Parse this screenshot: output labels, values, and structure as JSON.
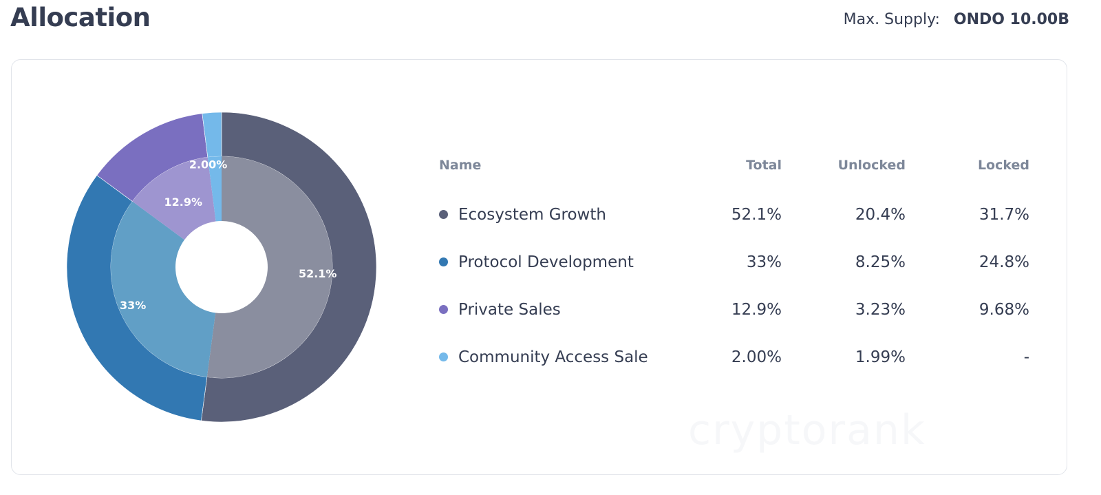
{
  "header": {
    "title": "Allocation",
    "supply_label": "Max. Supply:",
    "supply_value": "ONDO 10.00B"
  },
  "watermark": "cryptorank",
  "table": {
    "headers": {
      "name": "Name",
      "total": "Total",
      "unlocked": "Unlocked",
      "locked": "Locked"
    },
    "rows": [
      {
        "name": "Ecosystem Growth",
        "total": "52.1%",
        "unlocked": "20.4%",
        "locked": "31.7%",
        "color": "#5a6079"
      },
      {
        "name": "Protocol Development",
        "total": "33%",
        "unlocked": "8.25%",
        "locked": "24.8%",
        "color": "#3278b2"
      },
      {
        "name": "Private Sales",
        "total": "12.9%",
        "unlocked": "3.23%",
        "locked": "9.68%",
        "color": "#7a6fc0"
      },
      {
        "name": "Community Access Sale",
        "total": "2.00%",
        "unlocked": "1.99%",
        "locked": "-",
        "color": "#74b9ea"
      }
    ]
  },
  "chart_data": {
    "type": "pie",
    "style": "donut",
    "categories": [
      "Ecosystem Growth",
      "Protocol Development",
      "Private Sales",
      "Community Access Sale"
    ],
    "values": [
      52.1,
      33,
      12.9,
      2.0
    ],
    "labels": [
      "52.1%",
      "33%",
      "12.9%",
      "2.00%"
    ],
    "colors_outer": [
      "#5a6079",
      "#3278b2",
      "#7a6fc0",
      "#74b9ea"
    ],
    "colors_inner": [
      "#8a8e9f",
      "#619fc6",
      "#9e95d0",
      "#74b9ea"
    ]
  }
}
